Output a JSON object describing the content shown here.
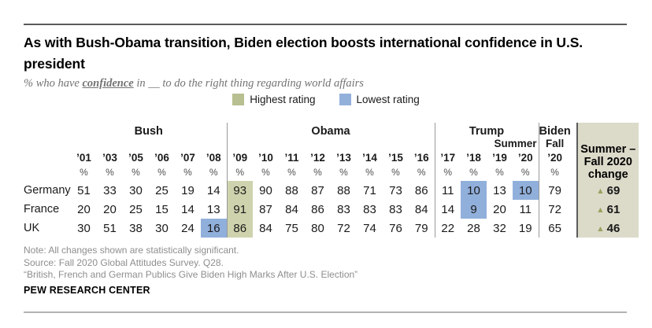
{
  "page": {
    "title": "As with Bush-Obama transition, Biden election boosts international confidence in U.S. president",
    "subtitle": {
      "prefix": "% who have ",
      "emphasis": "confidence",
      "suffix": " in __ to do the right thing regarding world affairs"
    }
  },
  "legend": {
    "items": [
      {
        "label": "Highest rating",
        "color": "#b8bf90"
      },
      {
        "label": "Lowest rating",
        "color": "#93b0db"
      }
    ]
  },
  "chart_data": {
    "type": "table",
    "title": "As with Bush-Obama transition, Biden election boosts international confidence in U.S. president",
    "unit": "%",
    "groups": [
      {
        "label": "Bush",
        "span": 6
      },
      {
        "label": "Obama",
        "span": 8
      },
      {
        "label": "Trump",
        "span": 4
      },
      {
        "label": "Biden",
        "span": 1
      }
    ],
    "sublabels": {
      "trump_summer": "Summer",
      "biden_fall": "Fall"
    },
    "years": [
      "’01",
      "’03",
      "’05",
      "’06",
      "’07",
      "’08",
      "’09",
      "’10",
      "’11",
      "’12",
      "’13",
      "’14",
      "’15",
      "’16",
      "’17",
      "’18",
      "’19",
      "’20",
      "’20"
    ],
    "rows": [
      {
        "country": "Germany",
        "values": [
          51,
          33,
          30,
          25,
          19,
          14,
          93,
          90,
          88,
          87,
          88,
          71,
          73,
          86,
          11,
          10,
          13,
          10,
          79
        ],
        "change": 69
      },
      {
        "country": "France",
        "values": [
          20,
          20,
          25,
          15,
          14,
          13,
          91,
          87,
          84,
          86,
          83,
          83,
          83,
          84,
          14,
          9,
          20,
          11,
          72
        ],
        "change": 61
      },
      {
        "country": "UK",
        "values": [
          30,
          51,
          38,
          30,
          24,
          16,
          86,
          84,
          75,
          80,
          72,
          74,
          76,
          79,
          22,
          28,
          32,
          19,
          65
        ],
        "change": 46
      }
    ],
    "change_header_lines": [
      "Summer –",
      "Fall 2020",
      "change"
    ],
    "change_icon": "▲",
    "highlights": {
      "highest": [
        [
          0,
          6
        ],
        [
          1,
          6
        ],
        [
          2,
          6
        ]
      ],
      "lowest": [
        [
          2,
          5
        ],
        [
          0,
          15
        ],
        [
          1,
          15
        ],
        [
          0,
          17
        ]
      ]
    },
    "colors": {
      "highest_cell": "#cfd3ad",
      "lowest_cell": "#91afdb",
      "change_bg": "#dcdac9",
      "triangle": "#97a25e",
      "separator": "#999999"
    },
    "layout": {
      "group_separators_before_columns": [
        6,
        14,
        18
      ],
      "legend_position": "top-center"
    }
  },
  "footer": {
    "note": "Note: All changes shown are statistically significant.",
    "source": "Source: Fall 2020 Global Attitudes Survey. Q28.",
    "report": "“British, French and German Publics Give Biden High Marks After U.S. Election”",
    "brand": "PEW RESEARCH CENTER"
  }
}
